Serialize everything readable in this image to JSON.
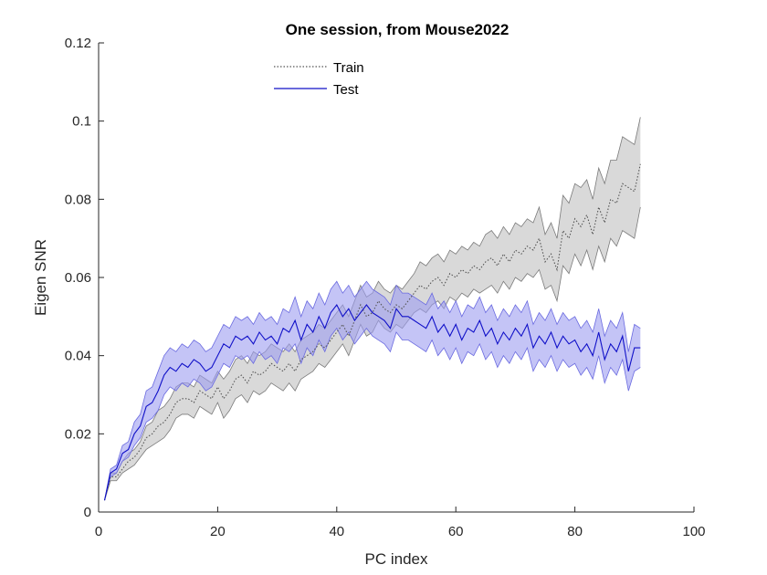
{
  "chart_data": {
    "type": "line",
    "title": "One session, from Mouse2022",
    "xlabel": "PC index",
    "ylabel": "Eigen SNR",
    "xlim": [
      0,
      100
    ],
    "ylim": [
      0,
      0.12
    ],
    "x_ticks": [
      0,
      20,
      40,
      60,
      80,
      100
    ],
    "y_ticks": [
      0,
      0.02,
      0.04,
      0.06,
      0.08,
      0.1,
      0.12
    ],
    "x_tick_labels": [
      "0",
      "20",
      "40",
      "60",
      "80",
      "100"
    ],
    "y_tick_labels": [
      "0",
      "0.02",
      "0.04",
      "0.06",
      "0.08",
      "0.1",
      "0.12"
    ],
    "grid": false,
    "legend_position": "top-center",
    "x": [
      1,
      2,
      3,
      4,
      5,
      6,
      7,
      8,
      9,
      10,
      11,
      12,
      13,
      14,
      15,
      16,
      17,
      18,
      19,
      20,
      21,
      22,
      23,
      24,
      25,
      26,
      27,
      28,
      29,
      30,
      31,
      32,
      33,
      34,
      35,
      36,
      37,
      38,
      39,
      40,
      41,
      42,
      43,
      44,
      45,
      46,
      47,
      48,
      49,
      50,
      51,
      52,
      53,
      54,
      55,
      56,
      57,
      58,
      59,
      60,
      61,
      62,
      63,
      64,
      65,
      66,
      67,
      68,
      69,
      70,
      71,
      72,
      73,
      74,
      75,
      76,
      77,
      78,
      79,
      80,
      81,
      82,
      83,
      84,
      85,
      86,
      87,
      88,
      89,
      90,
      91
    ],
    "series": [
      {
        "name": "Train",
        "line_style": "dotted",
        "line_color": "#555555",
        "band_color": "#c0c0c0",
        "band_edge_color": "#7a7a7a",
        "values": [
          0.003,
          0.009,
          0.009,
          0.011,
          0.013,
          0.014,
          0.016,
          0.019,
          0.02,
          0.022,
          0.023,
          0.025,
          0.028,
          0.029,
          0.029,
          0.028,
          0.031,
          0.03,
          0.029,
          0.032,
          0.029,
          0.031,
          0.034,
          0.035,
          0.033,
          0.036,
          0.035,
          0.036,
          0.038,
          0.037,
          0.036,
          0.038,
          0.036,
          0.039,
          0.04,
          0.041,
          0.043,
          0.042,
          0.044,
          0.046,
          0.048,
          0.045,
          0.049,
          0.053,
          0.05,
          0.051,
          0.054,
          0.052,
          0.051,
          0.053,
          0.052,
          0.054,
          0.056,
          0.058,
          0.057,
          0.059,
          0.06,
          0.058,
          0.061,
          0.06,
          0.062,
          0.061,
          0.063,
          0.062,
          0.064,
          0.065,
          0.063,
          0.066,
          0.064,
          0.067,
          0.066,
          0.068,
          0.067,
          0.07,
          0.064,
          0.066,
          0.062,
          0.072,
          0.07,
          0.075,
          0.073,
          0.076,
          0.071,
          0.078,
          0.074,
          0.08,
          0.079,
          0.084,
          0.083,
          0.082,
          0.089
        ],
        "lower": [
          0.003,
          0.008,
          0.008,
          0.01,
          0.011,
          0.012,
          0.014,
          0.016,
          0.017,
          0.018,
          0.019,
          0.021,
          0.024,
          0.025,
          0.025,
          0.024,
          0.027,
          0.026,
          0.025,
          0.028,
          0.024,
          0.026,
          0.029,
          0.03,
          0.028,
          0.031,
          0.03,
          0.031,
          0.033,
          0.032,
          0.031,
          0.033,
          0.031,
          0.034,
          0.035,
          0.036,
          0.038,
          0.037,
          0.039,
          0.041,
          0.043,
          0.04,
          0.044,
          0.048,
          0.045,
          0.046,
          0.049,
          0.047,
          0.046,
          0.048,
          0.047,
          0.049,
          0.051,
          0.052,
          0.051,
          0.053,
          0.054,
          0.052,
          0.055,
          0.054,
          0.056,
          0.055,
          0.057,
          0.056,
          0.057,
          0.058,
          0.056,
          0.059,
          0.057,
          0.06,
          0.059,
          0.061,
          0.06,
          0.062,
          0.057,
          0.058,
          0.054,
          0.063,
          0.061,
          0.066,
          0.063,
          0.067,
          0.062,
          0.068,
          0.064,
          0.07,
          0.068,
          0.072,
          0.071,
          0.07,
          0.078
        ],
        "upper": [
          0.003,
          0.01,
          0.01,
          0.013,
          0.015,
          0.016,
          0.018,
          0.022,
          0.023,
          0.026,
          0.027,
          0.029,
          0.032,
          0.033,
          0.033,
          0.032,
          0.035,
          0.034,
          0.033,
          0.036,
          0.034,
          0.036,
          0.039,
          0.04,
          0.038,
          0.041,
          0.04,
          0.041,
          0.043,
          0.042,
          0.041,
          0.043,
          0.041,
          0.044,
          0.045,
          0.046,
          0.048,
          0.047,
          0.049,
          0.051,
          0.053,
          0.05,
          0.054,
          0.058,
          0.055,
          0.056,
          0.059,
          0.057,
          0.056,
          0.058,
          0.057,
          0.059,
          0.061,
          0.064,
          0.063,
          0.065,
          0.066,
          0.064,
          0.067,
          0.066,
          0.068,
          0.067,
          0.069,
          0.068,
          0.071,
          0.072,
          0.07,
          0.073,
          0.071,
          0.074,
          0.073,
          0.075,
          0.074,
          0.078,
          0.071,
          0.074,
          0.07,
          0.081,
          0.079,
          0.084,
          0.083,
          0.085,
          0.08,
          0.088,
          0.084,
          0.09,
          0.09,
          0.096,
          0.095,
          0.094,
          0.101
        ]
      },
      {
        "name": "Test",
        "line_style": "solid",
        "line_color": "#1010c8",
        "band_color": "#9c9cf0",
        "band_edge_color": "#6a6ae0",
        "values": [
          0.003,
          0.01,
          0.011,
          0.015,
          0.016,
          0.02,
          0.022,
          0.027,
          0.028,
          0.031,
          0.035,
          0.037,
          0.036,
          0.038,
          0.037,
          0.039,
          0.038,
          0.036,
          0.037,
          0.04,
          0.043,
          0.042,
          0.045,
          0.044,
          0.045,
          0.043,
          0.046,
          0.044,
          0.045,
          0.043,
          0.047,
          0.046,
          0.049,
          0.044,
          0.048,
          0.046,
          0.05,
          0.047,
          0.051,
          0.053,
          0.05,
          0.052,
          0.049,
          0.051,
          0.053,
          0.051,
          0.05,
          0.049,
          0.047,
          0.052,
          0.05,
          0.05,
          0.049,
          0.048,
          0.047,
          0.05,
          0.046,
          0.048,
          0.045,
          0.048,
          0.044,
          0.047,
          0.046,
          0.049,
          0.045,
          0.047,
          0.043,
          0.046,
          0.044,
          0.047,
          0.045,
          0.048,
          0.042,
          0.045,
          0.043,
          0.046,
          0.042,
          0.045,
          0.043,
          0.044,
          0.041,
          0.043,
          0.04,
          0.046,
          0.039,
          0.043,
          0.041,
          0.045,
          0.036,
          0.042,
          0.042
        ],
        "lower": [
          0.003,
          0.009,
          0.01,
          0.013,
          0.014,
          0.017,
          0.019,
          0.023,
          0.024,
          0.026,
          0.03,
          0.032,
          0.031,
          0.033,
          0.032,
          0.034,
          0.033,
          0.031,
          0.032,
          0.035,
          0.038,
          0.037,
          0.04,
          0.039,
          0.04,
          0.038,
          0.041,
          0.039,
          0.04,
          0.038,
          0.042,
          0.041,
          0.043,
          0.038,
          0.042,
          0.04,
          0.044,
          0.041,
          0.045,
          0.047,
          0.044,
          0.046,
          0.043,
          0.045,
          0.047,
          0.045,
          0.044,
          0.043,
          0.041,
          0.046,
          0.044,
          0.044,
          0.043,
          0.042,
          0.041,
          0.044,
          0.04,
          0.042,
          0.039,
          0.042,
          0.038,
          0.041,
          0.04,
          0.043,
          0.039,
          0.041,
          0.037,
          0.04,
          0.038,
          0.041,
          0.039,
          0.042,
          0.036,
          0.039,
          0.037,
          0.04,
          0.036,
          0.039,
          0.037,
          0.038,
          0.035,
          0.037,
          0.034,
          0.04,
          0.033,
          0.037,
          0.035,
          0.039,
          0.031,
          0.036,
          0.037
        ],
        "upper": [
          0.003,
          0.011,
          0.012,
          0.017,
          0.018,
          0.023,
          0.025,
          0.031,
          0.032,
          0.036,
          0.04,
          0.042,
          0.041,
          0.043,
          0.042,
          0.044,
          0.043,
          0.041,
          0.042,
          0.045,
          0.048,
          0.047,
          0.05,
          0.049,
          0.05,
          0.048,
          0.051,
          0.049,
          0.05,
          0.048,
          0.052,
          0.051,
          0.055,
          0.05,
          0.054,
          0.052,
          0.056,
          0.053,
          0.057,
          0.059,
          0.056,
          0.058,
          0.055,
          0.057,
          0.059,
          0.057,
          0.056,
          0.055,
          0.053,
          0.058,
          0.056,
          0.056,
          0.055,
          0.054,
          0.053,
          0.056,
          0.052,
          0.054,
          0.051,
          0.054,
          0.05,
          0.053,
          0.052,
          0.055,
          0.051,
          0.053,
          0.049,
          0.052,
          0.05,
          0.053,
          0.051,
          0.054,
          0.048,
          0.051,
          0.049,
          0.052,
          0.048,
          0.051,
          0.049,
          0.05,
          0.047,
          0.049,
          0.046,
          0.052,
          0.045,
          0.049,
          0.047,
          0.051,
          0.041,
          0.048,
          0.047
        ]
      }
    ]
  }
}
